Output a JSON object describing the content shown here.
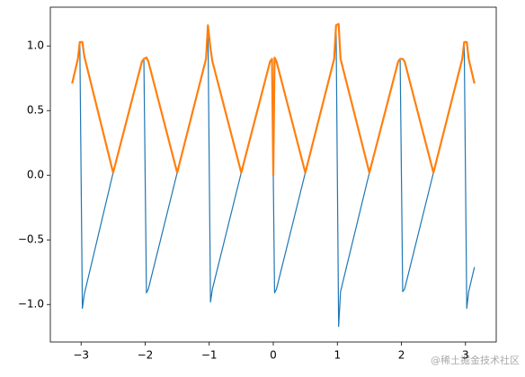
{
  "chart_data": {
    "type": "line",
    "xlim": [
      -3.48,
      3.48
    ],
    "ylim": [
      -1.29,
      1.3
    ],
    "xticks": [
      {
        "value": -3,
        "label": "−3"
      },
      {
        "value": -2,
        "label": "−2"
      },
      {
        "value": -1,
        "label": "−1"
      },
      0,
      1,
      2,
      3
    ],
    "yticks": [
      {
        "value": -1,
        "label": "−1.0"
      },
      {
        "value": -0.5,
        "label": "−0.5"
      },
      {
        "value": 0,
        "label": "0.0"
      },
      {
        "value": 0.5,
        "label": "0.5"
      },
      {
        "value": 1,
        "label": "1.0"
      }
    ],
    "series": [
      {
        "color": "#1f77b4",
        "width": 1.2,
        "x": [
          -3.14,
          -3.05,
          -3.02,
          -2.98,
          -2.95,
          -2.5,
          -2.05,
          -2.02,
          -1.98,
          -1.95,
          -1.5,
          -1.05,
          -1.02,
          -0.98,
          -0.95,
          -0.5,
          -0.05,
          -0.02,
          0.02,
          0.05,
          0.5,
          0.95,
          0.98,
          1.02,
          1.05,
          1.5,
          1.95,
          1.98,
          2.02,
          2.05,
          2.5,
          2.95,
          2.98,
          3.02,
          3.05,
          3.14
        ],
        "values": [
          0.71,
          0.9,
          1.03,
          -1.03,
          -0.92,
          0.02,
          0.88,
          0.9,
          -0.91,
          -0.88,
          0.02,
          0.9,
          1.16,
          -0.98,
          -0.88,
          0.02,
          0.88,
          0.9,
          -0.91,
          -0.88,
          0.02,
          0.9,
          1.16,
          -1.17,
          -0.9,
          0.02,
          0.88,
          0.9,
          -0.9,
          -0.88,
          0.02,
          0.9,
          1.03,
          -1.03,
          -0.9,
          -0.71
        ]
      },
      {
        "color": "#ff7f0e",
        "width": 2.2,
        "x": [
          -3.14,
          -3.05,
          -3.02,
          -2.98,
          -2.95,
          -2.5,
          -2.05,
          -2.02,
          -1.98,
          -1.95,
          -1.5,
          -1.05,
          -1.02,
          -0.98,
          -0.95,
          -0.5,
          -0.05,
          -0.02,
          0,
          0.02,
          0.05,
          0.5,
          0.95,
          0.98,
          1.02,
          1.05,
          1.5,
          1.95,
          1.98,
          2.02,
          2.05,
          2.5,
          2.95,
          2.98,
          3.02,
          3.05,
          3.14
        ],
        "values": [
          0.71,
          0.9,
          1.03,
          1.03,
          0.92,
          0.02,
          0.88,
          0.9,
          0.91,
          0.88,
          0.02,
          0.9,
          1.16,
          0.98,
          0.88,
          0.02,
          0.88,
          0.9,
          0,
          0.91,
          0.88,
          0.02,
          0.9,
          1.16,
          1.17,
          0.9,
          0.02,
          0.88,
          0.9,
          0.9,
          0.88,
          0.02,
          0.9,
          1.03,
          1.03,
          0.9,
          0.71
        ]
      }
    ],
    "watermark": "@稀土掘金技术社区"
  }
}
